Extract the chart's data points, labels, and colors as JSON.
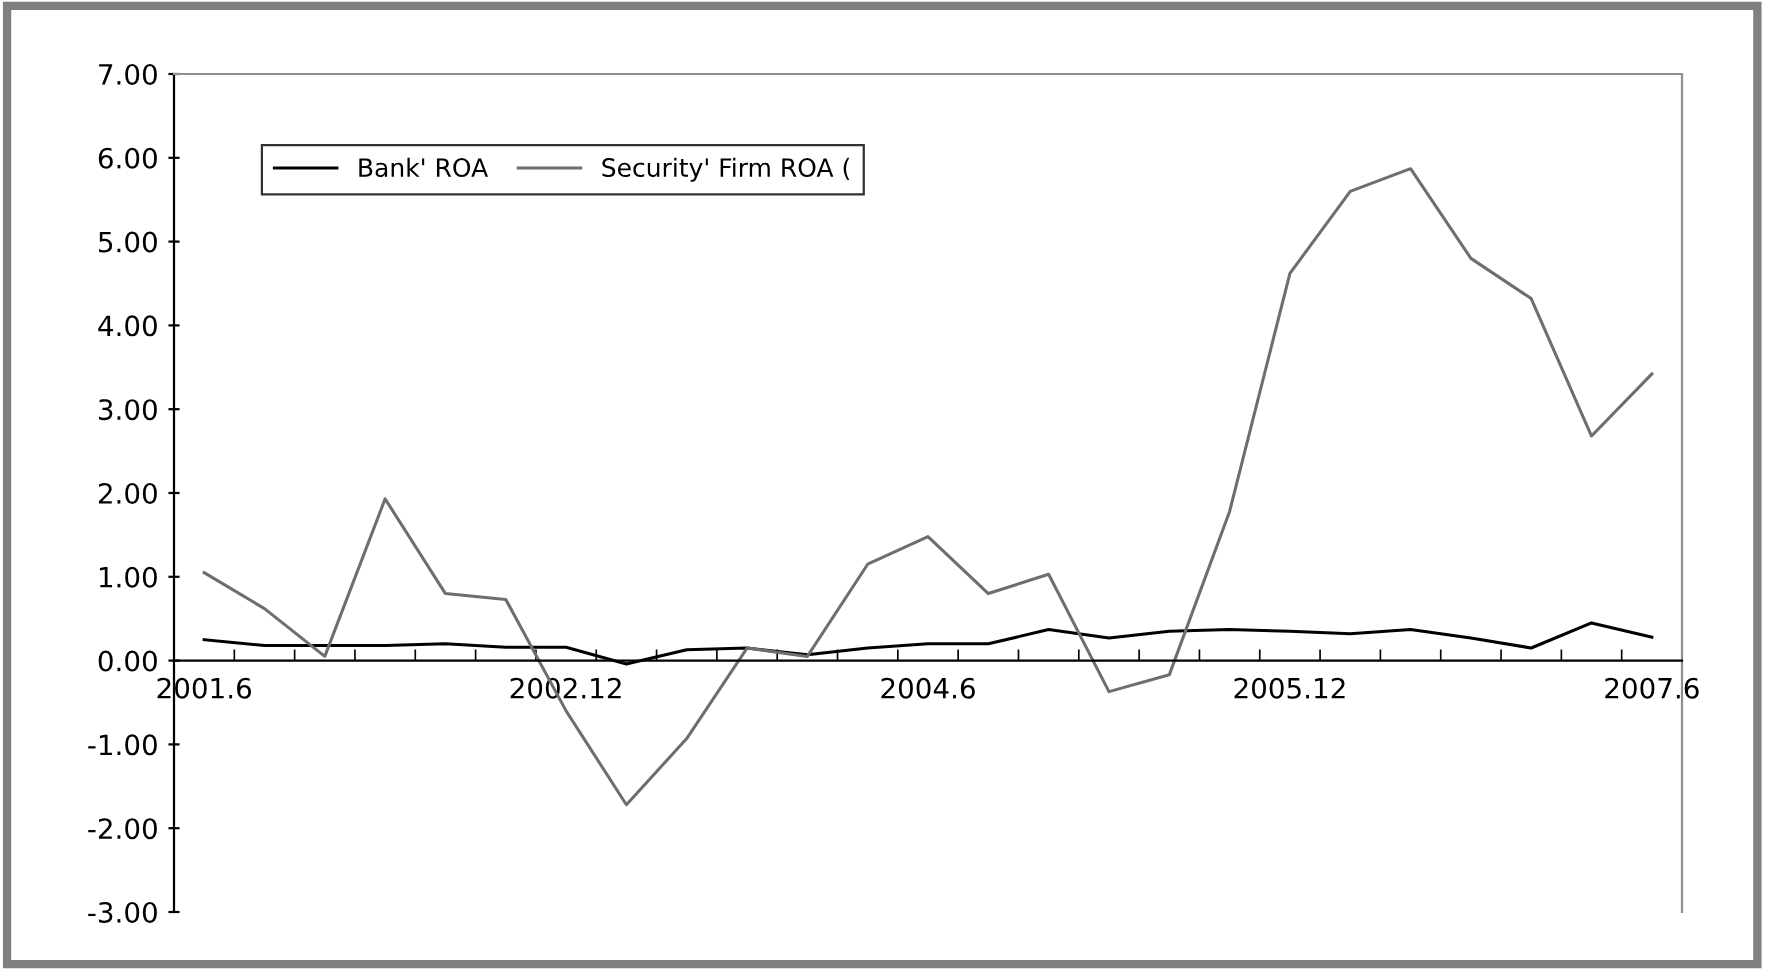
{
  "chart_data": {
    "type": "line",
    "categories": [
      "2001.6",
      null,
      null,
      null,
      null,
      null,
      "2002.12",
      null,
      null,
      null,
      null,
      null,
      "2004.6",
      null,
      null,
      null,
      null,
      null,
      "2005.12",
      null,
      null,
      null,
      null,
      null,
      "2007.6"
    ],
    "series": [
      {
        "name": "Bank' ROA",
        "color": "#000000",
        "values": [
          0.25,
          0.18,
          0.18,
          0.18,
          0.2,
          0.16,
          0.16,
          -0.04,
          0.13,
          0.15,
          0.07,
          0.15,
          0.2,
          0.2,
          0.37,
          0.27,
          0.35,
          0.37,
          0.35,
          0.32,
          0.37,
          0.27,
          0.15,
          0.45,
          0.28
        ]
      },
      {
        "name": "Security' Firm ROA (",
        "color": "#6e6e6e",
        "values": [
          1.05,
          0.62,
          0.05,
          1.93,
          0.8,
          0.73,
          -0.6,
          -1.72,
          -0.93,
          0.15,
          0.05,
          1.15,
          1.48,
          0.8,
          1.03,
          -0.37,
          -0.17,
          1.78,
          4.62,
          5.6,
          5.87,
          4.8,
          4.32,
          2.68,
          3.42
        ]
      }
    ],
    "ylim": [
      -3,
      7
    ],
    "yticks": [
      {
        "value": -3,
        "label": "-3.00"
      },
      {
        "value": -2,
        "label": "-2.00"
      },
      {
        "value": -1,
        "label": "-1.00"
      },
      {
        "value": 0,
        "label": "0.00"
      },
      {
        "value": 1,
        "label": "1.00"
      },
      {
        "value": 2,
        "label": "2.00"
      },
      {
        "value": 3,
        "label": "3.00"
      },
      {
        "value": 4,
        "label": "4.00"
      },
      {
        "value": 5,
        "label": "5.00"
      },
      {
        "value": 6,
        "label": "6.00"
      },
      {
        "value": 7,
        "label": "7.00"
      }
    ],
    "grid": false,
    "legend": "top left",
    "marker": "none",
    "line_style": "solid"
  }
}
